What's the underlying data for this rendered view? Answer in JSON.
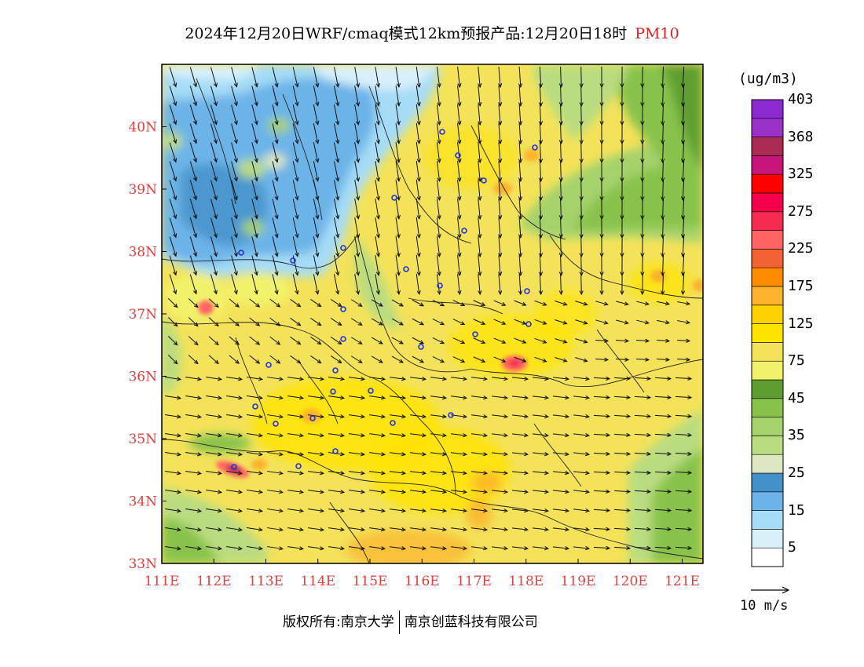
{
  "title": {
    "main": "2024年12月20日WRF/cmaq模式12km预报产品:12月20日18时",
    "species": "PM10"
  },
  "map": {
    "lon_range": [
      111,
      121.4
    ],
    "lat_range": [
      33,
      41
    ],
    "x_ticks": [
      "111E",
      "112E",
      "113E",
      "114E",
      "115E",
      "116E",
      "117E",
      "118E",
      "119E",
      "120E",
      "121E"
    ],
    "y_ticks": [
      "33N",
      "34N",
      "35N",
      "36N",
      "37N",
      "38N",
      "39N",
      "40N"
    ]
  },
  "legend": {
    "unit": "(ug/m3)",
    "bins": [
      {
        "color": "#ffffff"
      },
      {
        "color": "#d9f0fb"
      },
      {
        "color": "#a6dcf6"
      },
      {
        "color": "#6cb4e8"
      },
      {
        "color": "#4590c8"
      },
      {
        "color": "#dce8c0"
      },
      {
        "color": "#b9dc80"
      },
      {
        "color": "#a6d26c"
      },
      {
        "color": "#88c24c"
      },
      {
        "color": "#5e9e30"
      },
      {
        "color": "#f2f26a"
      },
      {
        "color": "#f4e35a"
      },
      {
        "color": "#ffe400"
      },
      {
        "color": "#fcd200"
      },
      {
        "color": "#fbb22c"
      },
      {
        "color": "#ff8c00"
      },
      {
        "color": "#f26232"
      },
      {
        "color": "#ff6464"
      },
      {
        "color": "#f52b52"
      },
      {
        "color": "#f5004b"
      },
      {
        "color": "#ff0000"
      },
      {
        "color": "#c6147a"
      },
      {
        "color": "#aa2a50"
      },
      {
        "color": "#9b32c8"
      },
      {
        "color": "#8c2ad2"
      }
    ],
    "labels": [
      "5",
      "15",
      "25",
      "35",
      "45",
      "75",
      "125",
      "175",
      "225",
      "275",
      "325",
      "368",
      "403"
    ],
    "reference_vector": "10 m/s"
  },
  "footer": {
    "copyright": "版权所有:南京大学",
    "company": "南京创蓝科技有限公司"
  },
  "colors": {
    "axis_label": "#e04040",
    "title_species": "#e02020"
  }
}
